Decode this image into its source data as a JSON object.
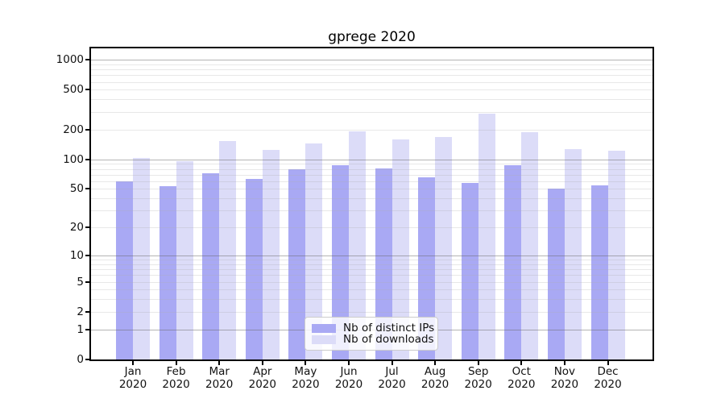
{
  "chart_data": {
    "type": "bar",
    "title": "gprege 2020",
    "categories": [
      {
        "month": "Jan",
        "year": "2020"
      },
      {
        "month": "Feb",
        "year": "2020"
      },
      {
        "month": "Mar",
        "year": "2020"
      },
      {
        "month": "Apr",
        "year": "2020"
      },
      {
        "month": "May",
        "year": "2020"
      },
      {
        "month": "Jun",
        "year": "2020"
      },
      {
        "month": "Jul",
        "year": "2020"
      },
      {
        "month": "Aug",
        "year": "2020"
      },
      {
        "month": "Sep",
        "year": "2020"
      },
      {
        "month": "Oct",
        "year": "2020"
      },
      {
        "month": "Nov",
        "year": "2020"
      },
      {
        "month": "Dec",
        "year": "2020"
      }
    ],
    "series": [
      {
        "name": "Nb of distinct IPs",
        "color": "#a9a9f4",
        "values": [
          60,
          53,
          72,
          63,
          80,
          87,
          81,
          66,
          58,
          87,
          50,
          54
        ]
      },
      {
        "name": "Nb of downloads",
        "color": "#dcdcf8",
        "values": [
          103,
          95,
          152,
          125,
          145,
          190,
          158,
          167,
          290,
          186,
          127,
          121
        ]
      }
    ],
    "y_axis": {
      "scale": "log1p",
      "max": 1300,
      "ticks": [
        0,
        1,
        2,
        5,
        10,
        20,
        50,
        100,
        200,
        500,
        1000
      ],
      "major_gridlines": [
        1,
        10,
        100,
        1000
      ],
      "minor_gridlines": [
        2,
        3,
        4,
        5,
        6,
        7,
        8,
        9,
        20,
        30,
        40,
        50,
        60,
        70,
        80,
        90,
        200,
        300,
        400,
        500,
        600,
        700,
        800,
        900
      ]
    },
    "legend": {
      "position": "lower center"
    },
    "grid_colors": {
      "major": "#b4b4b4",
      "minor": "#e9e9e9"
    },
    "spine_color": "#000000"
  }
}
